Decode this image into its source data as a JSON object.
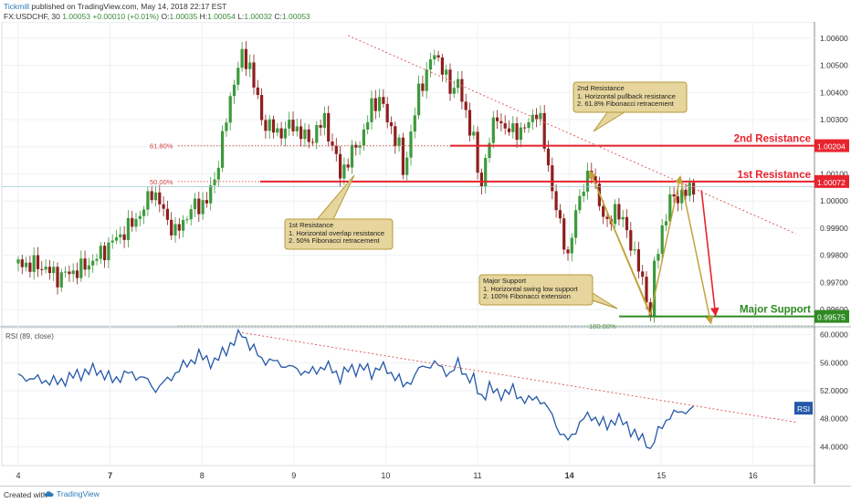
{
  "header": {
    "author": "Tickmill",
    "published": "published on TradingView.com, May 14, 2018 22:17 EST",
    "symbol": "FX:USDCHF, 30",
    "close_price": "1.00053",
    "change": "+0.00010 (+0.01%)",
    "ohlc": {
      "o_label": "O:",
      "o": "1.00035",
      "h_label": "H:",
      "h": "1.00054",
      "l_label": "L:",
      "l": "1.00032",
      "c_label": "C:",
      "c": "1.00053"
    }
  },
  "footer": {
    "created_with": "Created with",
    "brand": "TradingView"
  },
  "chart_data": [
    {
      "type": "candlestick",
      "symbol": "FX:USDCHF",
      "timeframe": "30",
      "x_ticks": [
        "4",
        "7",
        "8",
        "9",
        "10",
        "11",
        "14",
        "15",
        "16"
      ],
      "x_tick_bold": [
        "7",
        "14"
      ],
      "y_ticks": [
        "1.00600",
        "1.00500",
        "1.00400",
        "1.00300",
        "1.00200",
        "1.00100",
        "1.00000",
        "0.99900",
        "0.99800",
        "0.99700",
        "0.99600"
      ],
      "ylim": [
        0.9954,
        1.0066
      ],
      "close_path": [
        [
          0,
          0.9977
        ],
        [
          3,
          0.9976
        ],
        [
          5,
          0.9972
        ],
        [
          8,
          0.9975
        ],
        [
          10,
          0.9979
        ],
        [
          12,
          0.9985
        ],
        [
          14,
          0.999
        ],
        [
          16,
          0.9997
        ],
        [
          17,
          1.0004
        ],
        [
          17.5,
          1.0002
        ],
        [
          19,
          0.9993
        ],
        [
          20,
          0.9988
        ],
        [
          22,
          0.9997
        ],
        [
          24,
          1.0
        ],
        [
          25,
          1.0008
        ],
        [
          26.5,
          1.003
        ],
        [
          27.5,
          1.0045
        ],
        [
          28.5,
          1.0053
        ],
        [
          29.5,
          1.005
        ],
        [
          31,
          1.003
        ],
        [
          33,
          1.0025
        ],
        [
          35,
          1.0028
        ],
        [
          37,
          1.0022
        ],
        [
          39,
          1.003
        ],
        [
          40,
          1.002
        ],
        [
          41,
          1.001
        ],
        [
          42,
          1.0015
        ],
        [
          44,
          1.0025
        ],
        [
          45,
          1.0035
        ],
        [
          46,
          1.0038
        ],
        [
          47,
          1.003
        ],
        [
          48.5,
          1.002
        ],
        [
          49,
          1.001
        ],
        [
          50,
          1.0025
        ],
        [
          51,
          1.004
        ],
        [
          52,
          1.0048
        ],
        [
          53,
          1.0054
        ],
        [
          54,
          1.005
        ],
        [
          55,
          1.004
        ],
        [
          56,
          1.0045
        ],
        [
          57,
          1.003
        ],
        [
          58,
          1.0025
        ],
        [
          58.5,
          1.001
        ],
        [
          59,
          1.0005
        ],
        [
          60,
          1.0025
        ],
        [
          61,
          1.003
        ],
        [
          63,
          1.0025
        ],
        [
          65,
          1.0028
        ],
        [
          66.2,
          1.0035
        ],
        [
          67,
          1.002
        ],
        [
          68,
          1.0005
        ],
        [
          69,
          0.999
        ],
        [
          70,
          0.998
        ],
        [
          71,
          0.9995
        ],
        [
          72,
          1.0007
        ],
        [
          73,
          1.001
        ],
        [
          74,
          1.0
        ],
        [
          75,
          0.999
        ],
        [
          76,
          0.9998
        ],
        [
          77,
          0.9992
        ],
        [
          78,
          0.9985
        ],
        [
          79,
          0.9975
        ],
        [
          80,
          0.9965
        ],
        [
          80.5,
          0.9958
        ],
        [
          81,
          0.9975
        ],
        [
          82,
          0.999
        ],
        [
          83,
          1.0
        ],
        [
          84,
          1.0002
        ],
        [
          85,
          1.0003
        ],
        [
          86,
          1.0005
        ]
      ],
      "price_levels": [
        {
          "name": "2nd Resistance",
          "value": 1.00204,
          "label": "1.00204",
          "color": "#e8232d"
        },
        {
          "name": "1st Resistance",
          "value": 1.00072,
          "label": "1.00072",
          "color": "#e8232d"
        },
        {
          "name": "Major Support",
          "value": 0.99575,
          "label": "0.99575",
          "color": "#2f8a22"
        }
      ],
      "fib_levels": [
        {
          "label": "61.80%",
          "value": 1.00204
        },
        {
          "label": "50.00%",
          "value": 1.00072
        },
        {
          "label": "100.00%",
          "value": 0.9954
        }
      ],
      "current_price": 1.00053,
      "trendline": {
        "from": [
          42,
          1.0061
        ],
        "to": [
          99,
          0.9988
        ],
        "color": "#e06060"
      },
      "callouts": [
        {
          "title": "2nd Resistance",
          "lines": [
            "1. Horizontal pullback resistance",
            "2. 61.8% Fibonacci retracement"
          ]
        },
        {
          "title": "1st Resistance",
          "lines": [
            "1. Horizontal overlap resistance",
            "2. 50% Fibonacci retracement"
          ]
        },
        {
          "title": "Major Support",
          "lines": [
            "1. Horizontal swing low support",
            "2. 100% Fibonacci extension"
          ]
        }
      ],
      "colors": {
        "up": "#3c9a3c",
        "down": "#8e1f1f",
        "level_red": "#e8232d",
        "level_green": "#2f8a22",
        "callout_bg": "#e6d59c",
        "callout_border": "#b59a3b",
        "fib_arrow": "#c2a33a",
        "down_arrow": "#e8232d"
      }
    },
    {
      "type": "line",
      "title": "RSI (89, close)",
      "series": [
        {
          "name": "RSI",
          "color": "#2558a7"
        }
      ],
      "y_ticks": [
        "60.0000",
        "56.0000",
        "52.0000",
        "48.0000",
        "44.0000"
      ],
      "ylim": [
        41.3,
        61
      ],
      "badge": "RSI",
      "values_path": [
        [
          0,
          54.0
        ],
        [
          5,
          53.2
        ],
        [
          8,
          54.5
        ],
        [
          10,
          55.0
        ],
        [
          12,
          53.5
        ],
        [
          14,
          54.5
        ],
        [
          16,
          53.8
        ],
        [
          17.5,
          52.2
        ],
        [
          19,
          53.5
        ],
        [
          21,
          55.5
        ],
        [
          23,
          57.0
        ],
        [
          25,
          56.0
        ],
        [
          26.5,
          58.0
        ],
        [
          27.5,
          59.0
        ],
        [
          28.5,
          60.3
        ],
        [
          29.5,
          58.5
        ],
        [
          31,
          56.5
        ],
        [
          33,
          56.0
        ],
        [
          35,
          55.2
        ],
        [
          37,
          54.5
        ],
        [
          39,
          55.5
        ],
        [
          40,
          55.0
        ],
        [
          41,
          54.0
        ],
        [
          42,
          55.0
        ],
        [
          44,
          55.3
        ],
        [
          45,
          54.5
        ],
        [
          46,
          55.5
        ],
        [
          48.5,
          53.8
        ],
        [
          49,
          52.5
        ],
        [
          50,
          53.5
        ],
        [
          51,
          55.0
        ],
        [
          52,
          55.5
        ],
        [
          53,
          56.0
        ],
        [
          54,
          55.0
        ],
        [
          55,
          54.5
        ],
        [
          56,
          55.8
        ],
        [
          57,
          54.2
        ],
        [
          58,
          53.5
        ],
        [
          58.5,
          52.0
        ],
        [
          59,
          51.0
        ],
        [
          60,
          52.5
        ],
        [
          61,
          51.5
        ],
        [
          63,
          52.0
        ],
        [
          64,
          51.0
        ],
        [
          65,
          50.5
        ],
        [
          66.2,
          51.2
        ],
        [
          67,
          50.0
        ],
        [
          68,
          48.5
        ],
        [
          69,
          46.0
        ],
        [
          70,
          44.8
        ],
        [
          71,
          46.5
        ],
        [
          72,
          48.0
        ],
        [
          73,
          48.5
        ],
        [
          74,
          47.5
        ],
        [
          75,
          47.0
        ],
        [
          76,
          48.0
        ],
        [
          77,
          47.5
        ],
        [
          78,
          46.5
        ],
        [
          79,
          45.2
        ],
        [
          80,
          44.8
        ],
        [
          80.5,
          43.5
        ],
        [
          81,
          45.0
        ],
        [
          82,
          47.0
        ],
        [
          83,
          48.5
        ],
        [
          84,
          48.8
        ],
        [
          85,
          49.2
        ],
        [
          86,
          49.4
        ]
      ],
      "trendline": {
        "from": [
          28.5,
          60.3
        ],
        "to": [
          99,
          47.5
        ],
        "color": "#e06060"
      }
    }
  ]
}
